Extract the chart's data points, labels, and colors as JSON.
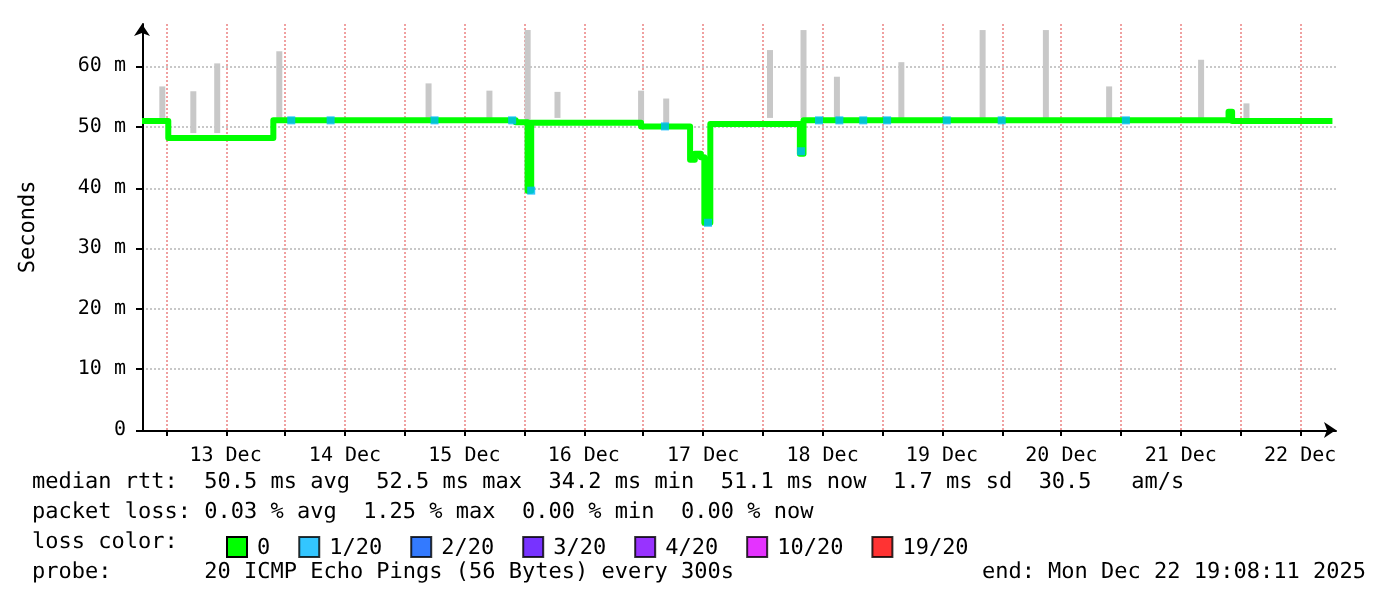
{
  "chart_data": {
    "type": "step",
    "ylabel": "Seconds",
    "legend_title": "loss color:",
    "legend": "bottom",
    "grid": true,
    "marker": "none",
    "xlim": [
      "--12-12T19:12",
      "--12-22T19:12"
    ],
    "xticks": [
      {
        "value": "--12-13",
        "label": null
      },
      {
        "value": "--12-13T12:00",
        "label": "13 Dec"
      },
      {
        "value": "--12-14",
        "label": null
      },
      {
        "value": "--12-14T12:00",
        "label": "14 Dec"
      },
      {
        "value": "--12-15",
        "label": null
      },
      {
        "value": "--12-15T12:00",
        "label": "15 Dec"
      },
      {
        "value": "--12-16",
        "label": null
      },
      {
        "value": "--12-16T12:00",
        "label": "16 Dec"
      },
      {
        "value": "--12-17",
        "label": null
      },
      {
        "value": "--12-17T12:00",
        "label": "17 Dec"
      },
      {
        "value": "--12-18",
        "label": null
      },
      {
        "value": "--12-18T12:00",
        "label": "18 Dec"
      },
      {
        "value": "--12-19",
        "label": null
      },
      {
        "value": "--12-19T12:00",
        "label": "19 Dec"
      },
      {
        "value": "--12-20",
        "label": null
      },
      {
        "value": "--12-20T12:00",
        "label": "20 Dec"
      },
      {
        "value": "--12-21",
        "label": null
      },
      {
        "value": "--12-21T12:00",
        "label": "21 Dec"
      },
      {
        "value": "--12-22",
        "label": null
      },
      {
        "value": "--12-22T12:00",
        "label": "22 Dec"
      }
    ],
    "ylim": [
      0,
      67
    ],
    "yticks": [
      0,
      {
        "value": 10,
        "label": "10 m"
      },
      {
        "value": 20,
        "label": "20 m"
      },
      {
        "value": 30,
        "label": "30 m"
      },
      {
        "value": 40,
        "label": "40 m"
      },
      {
        "value": 50,
        "label": "50 m"
      },
      {
        "value": 60,
        "label": "60 m"
      }
    ],
    "series": [
      {
        "type": "bar",
        "color": "#c8c8c8",
        "x": [
          "--12-12T23:17",
          "--12-13T05:31",
          "--12-13T10:19",
          "--12-13T22:48",
          "--12-15T04:48",
          "--12-15T17:02",
          "--12-16T00:43",
          "--12-16T06:43",
          "--12-16T23:31",
          "--12-17T04:34",
          "--12-18T01:26",
          "--12-18T08:10",
          "--12-18T14:53",
          "--12-19T03:50",
          "--12-19T20:10",
          "--12-20T08:53",
          "--12-20T21:36",
          "--12-21T16:05",
          "--12-22T01:12"
        ],
        "base": [
          51.5,
          49,
          49,
          51.5,
          51.5,
          51.5,
          39,
          51.5,
          50.5,
          50.5,
          51.5,
          51.5,
          51.5,
          51.5,
          51.5,
          51.5,
          51.5,
          51.5,
          51.5
        ],
        "values": [
          5.2,
          6.9,
          11.5,
          11,
          5.7,
          4.5,
          27,
          4.3,
          5.5,
          4.2,
          11.2,
          14.5,
          6.8,
          9.2,
          14.5,
          14.5,
          5.2,
          9.6,
          2.4
        ]
      },
      {
        "name": "0",
        "color": "#00ff00",
        "x": [
          "--12-12T19:12",
          "--12-13T00:29",
          "--12-13T21:36",
          "--12-15T22:19",
          "--12-16T00:43",
          "--12-16T01:26",
          "--12-16T23:31",
          "--12-17T09:22",
          "--12-17T10:19",
          "--12-17T11:31",
          "--12-17T12:14",
          "--12-17T13:26",
          "--12-18T07:26",
          "--12-18T08:10",
          "--12-21T21:36",
          "--12-21T22:19",
          "--12-22T18:29"
        ],
        "values": [
          51,
          48.2,
          51.1,
          50.8,
          39.5,
          50.7,
          50.1,
          44.6,
          45.6,
          45,
          34.2,
          50.5,
          45.6,
          51.1,
          52.5,
          51,
          51
        ]
      },
      {
        "name": "1/20",
        "type": "scatter",
        "marker": "square",
        "color": "#00b8ff",
        "x": [
          "--12-14T01:12",
          "--12-14T09:07",
          "--12-15T06:00",
          "--12-15T21:36",
          "--12-16T01:26",
          "--12-17T04:19",
          "--12-17T12:58",
          "--12-18T07:41",
          "--12-18T11:17",
          "--12-18T15:22",
          "--12-18T20:10",
          "--12-19T00:58",
          "--12-19T12:58",
          "--12-20T00:00",
          "--12-21T00:58"
        ],
        "values": [
          51.1,
          51.1,
          51.1,
          51.1,
          39.5,
          50.1,
          34.2,
          46,
          51.1,
          51.1,
          51.1,
          51.1,
          51.1,
          51.1,
          51.1
        ]
      },
      {
        "name": "2/20",
        "type": "scatter",
        "marker": "square",
        "color": "#0059ff"
      },
      {
        "name": "3/20",
        "type": "scatter",
        "marker": "square",
        "color": "#5500ff"
      },
      {
        "name": "4/20",
        "type": "scatter",
        "marker": "square",
        "color": "#7e00ff"
      },
      {
        "name": "10/20",
        "type": "scatter",
        "marker": "square",
        "color": "#dd00ff"
      },
      {
        "name": "19/20",
        "type": "scatter",
        "marker": "square",
        "color": "#ff0000"
      }
    ],
    "annotations": [
      "median rtt:  50.5 ms avg  52.5 ms max  34.2 ms min  51.1 ms now  1.7 ms sd  30.5   am/s",
      "packet loss: 0.03 % avg  1.25 % max  0.00 % min  0.00 % now",
      "probe:       20 ICMP Echo Pings (56 Bytes) every 300s",
      "end: Mon Dec 22 19:08:11 2025"
    ]
  }
}
